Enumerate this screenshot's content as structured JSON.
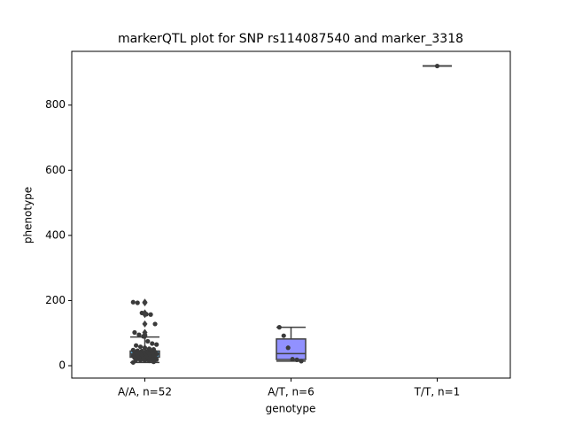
{
  "chart_data": {
    "type": "box",
    "title": "markerQTL plot for SNP rs114087540 and marker_3318",
    "x_label": "genotype",
    "y_label": "phenotype",
    "categories": [
      "A/A, n=52",
      "A/T, n=6",
      "T/T, n=1"
    ],
    "boxes": [
      {
        "whisker_low": 10,
        "q1": 26,
        "median": 36,
        "q3": 45,
        "whisker_high": 88,
        "color": "#5fa8d3"
      },
      {
        "whisker_low": 14,
        "q1": 19,
        "median": 37,
        "q3": 82,
        "whisker_high": 118,
        "color": "#9191ff"
      },
      {
        "whisker_low": 920,
        "q1": 920,
        "median": 920,
        "q3": 920,
        "whisker_high": 920,
        "color": "#ffa07a"
      }
    ],
    "points": [
      [
        195,
        193,
        162,
        158,
        157,
        128,
        102,
        95,
        90,
        75,
        68,
        65,
        62,
        58,
        55,
        52,
        50,
        48,
        46,
        45,
        44,
        43,
        42,
        41,
        40,
        39,
        38,
        37,
        36,
        35,
        34,
        33,
        32,
        31,
        30,
        29,
        28,
        27,
        26,
        25,
        24,
        23,
        22,
        21,
        20,
        19,
        18,
        17,
        16,
        15,
        12,
        10
      ],
      [
        118,
        92,
        55,
        20,
        18,
        14
      ],
      [
        920
      ]
    ],
    "point_color": "#3a3a3a",
    "ylim": [
      -38,
      965
    ],
    "yticks": [
      0,
      200,
      400,
      600,
      800
    ]
  }
}
